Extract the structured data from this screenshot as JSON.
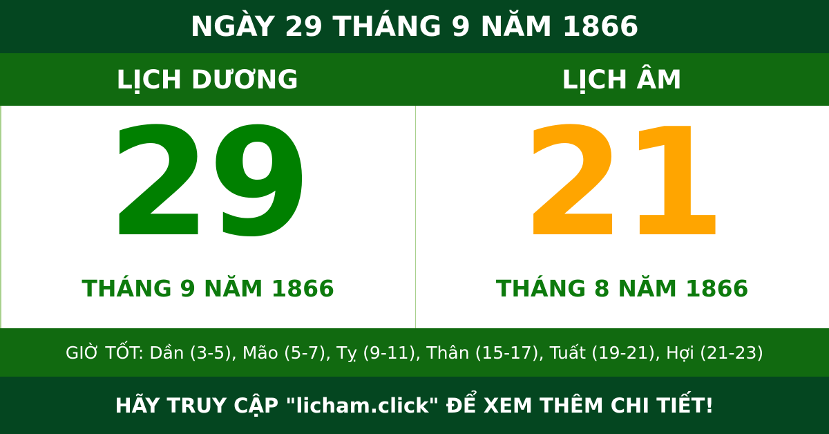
{
  "title": "NGÀY 29 THÁNG 9 NĂM 1866",
  "solar": {
    "heading": "LỊCH DƯƠNG",
    "day": "29",
    "month_year": "THÁNG 9 NĂM 1866"
  },
  "lunar": {
    "heading": "LỊCH ÂM",
    "day": "21",
    "month_year": "THÁNG 8 NĂM 1866"
  },
  "good_hours": "GIỜ TỐT: Dần (3-5), Mão (5-7), Tỵ (9-11), Thân (15-17), Tuất (19-21), Hợi (21-23)",
  "footer": "HÃY TRUY CẬP \"licham.click\" ĐỂ XEM THÊM CHI TIẾT!",
  "colors": {
    "dark_green": "#044620",
    "band_green": "#116a10",
    "solar_day": "#008000",
    "lunar_day": "#ffa500"
  }
}
